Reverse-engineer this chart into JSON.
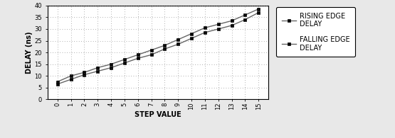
{
  "step_values": [
    0,
    1,
    2,
    3,
    4,
    5,
    6,
    7,
    8,
    9,
    10,
    11,
    12,
    13,
    14,
    15
  ],
  "rising_edge": [
    7.5,
    10.0,
    11.5,
    13.5,
    15.0,
    17.0,
    19.0,
    21.0,
    23.0,
    25.5,
    28.0,
    30.5,
    32.0,
    33.5,
    36.0,
    38.5
  ],
  "falling_edge": [
    6.5,
    8.5,
    10.5,
    12.0,
    13.5,
    15.5,
    17.5,
    19.0,
    21.5,
    23.5,
    26.0,
    28.5,
    30.0,
    31.5,
    34.0,
    37.0
  ],
  "xlabel": "STEP VALUE",
  "ylabel": "DELAY (ns)",
  "ylim": [
    0,
    40
  ],
  "yticks": [
    0,
    5,
    10,
    15,
    20,
    25,
    30,
    35,
    40
  ],
  "line_color": "#666666",
  "marker_color": "#000000",
  "bg_color": "#e8e8e8",
  "plot_bg_color": "#ffffff",
  "legend_labels": [
    "RISING EDGE\nDELAY",
    "FALLING EDGE\nDELAY"
  ],
  "xlabel_fontsize": 7,
  "ylabel_fontsize": 7,
  "tick_fontsize": 6,
  "legend_fontsize": 7,
  "fig_width": 5.55,
  "fig_height": 1.95,
  "dpi": 100
}
